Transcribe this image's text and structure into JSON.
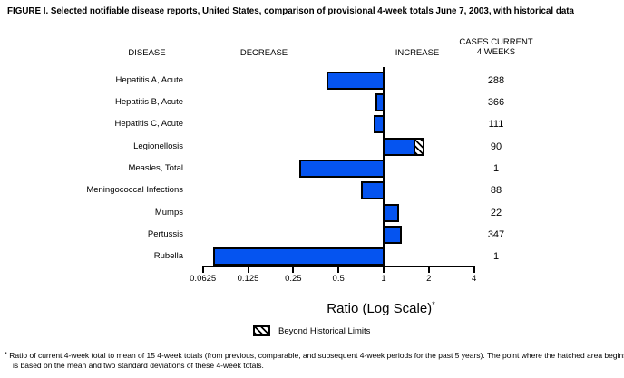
{
  "title": "FIGURE I. Selected notifiable disease reports, United States, comparison of provisional 4-week totals June 7, 2003, with historical data",
  "columns": {
    "disease": "DISEASE",
    "decrease": "DECREASE",
    "increase": "INCREASE",
    "cases_line1": "CASES CURRENT",
    "cases_line2": "4 WEEKS"
  },
  "chart_data": {
    "type": "bar",
    "orientation": "horizontal",
    "scale": "log2",
    "title": "Selected notifiable disease reports, United States, comparison of provisional 4-week totals June 7, 2003, with historical data",
    "xlabel": "Ratio (Log Scale)",
    "xlabel_marker": "*",
    "axis": {
      "ticks": [
        0.0625,
        0.125,
        0.25,
        0.5,
        1,
        2,
        4
      ],
      "tick_labels": [
        "0.0625",
        "0.125",
        "0.25",
        "0.5",
        "1",
        "2",
        "4"
      ],
      "baseline": 1,
      "xlim": [
        0.0625,
        4
      ]
    },
    "bar_color": "#0554f0",
    "rows": [
      {
        "disease": "Hepatitis A, Acute",
        "ratio": 0.42,
        "cases": "288",
        "beyond_limits": false
      },
      {
        "disease": "Hepatitis B, Acute",
        "ratio": 0.9,
        "cases": "366",
        "beyond_limits": false
      },
      {
        "disease": "Hepatitis C, Acute",
        "ratio": 0.87,
        "cases": "111",
        "beyond_limits": false
      },
      {
        "disease": "Legionellosis",
        "ratio": 1.85,
        "cases": "90",
        "beyond_limits": true,
        "hatch_start": 1.64
      },
      {
        "disease": "Measles, Total",
        "ratio": 0.28,
        "cases": "1",
        "beyond_limits": false
      },
      {
        "disease": "Meningococcal Infections",
        "ratio": 0.72,
        "cases": "88",
        "beyond_limits": false
      },
      {
        "disease": "Mumps",
        "ratio": 1.25,
        "cases": "22",
        "beyond_limits": false
      },
      {
        "disease": "Pertussis",
        "ratio": 1.31,
        "cases": "347",
        "beyond_limits": false
      },
      {
        "disease": "Rubella",
        "ratio": 0.074,
        "cases": "1",
        "beyond_limits": false
      }
    ],
    "legend": {
      "label": "Beyond Historical Limits",
      "position": "bottom"
    }
  },
  "footnote": {
    "marker": "*",
    "text": "Ratio of current 4-week total to mean of 15 4-week totals (from previous, comparable, and subsequent 4-week periods for the past 5 years). The point where the hatched area begins is based on the mean and two standard deviations of these 4-week totals."
  }
}
